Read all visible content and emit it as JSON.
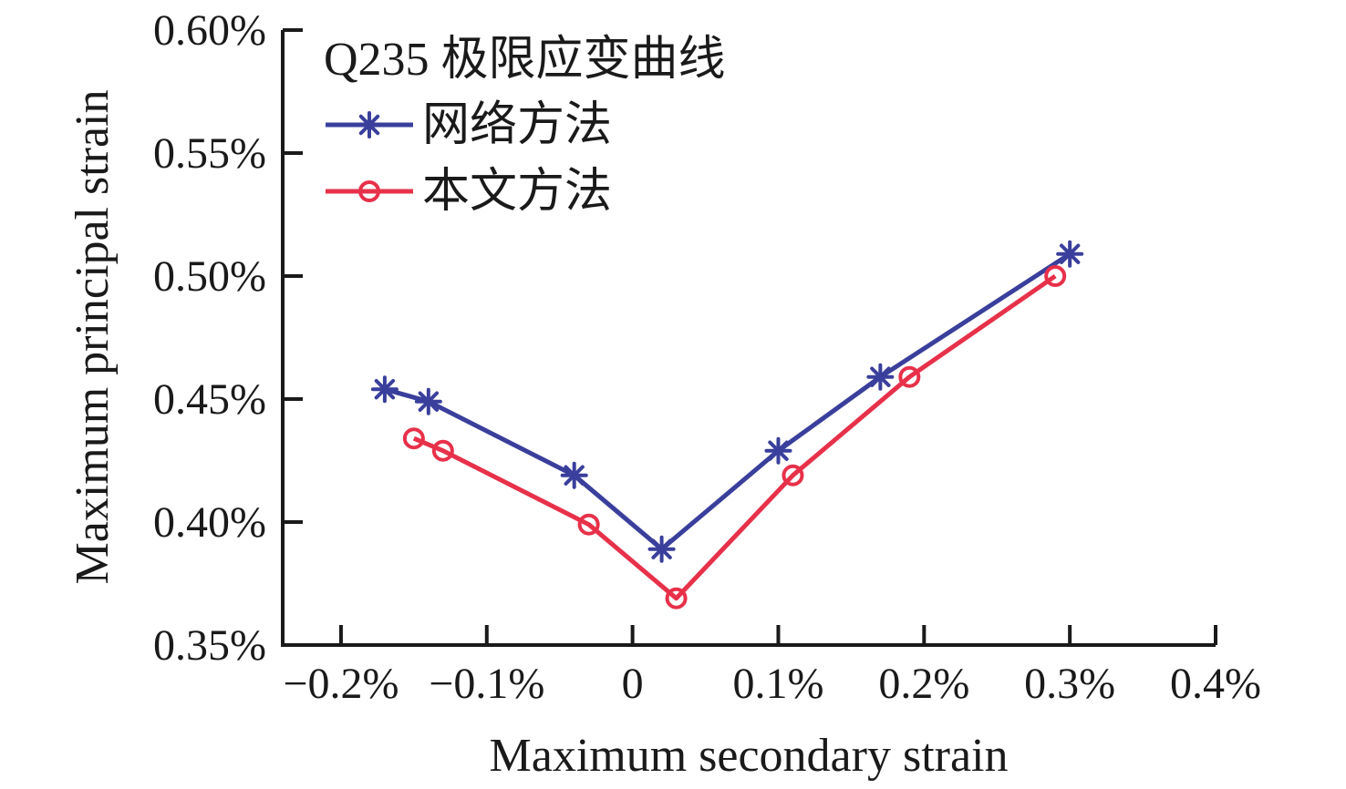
{
  "page": {
    "background": "#ffffff",
    "text_color": "#1a1a1a",
    "axis_color": "#1a1a1a"
  },
  "chart_data": {
    "type": "line",
    "title": "Q235 极限应变曲线",
    "xlabel": "Maximum secondary strain",
    "ylabel": "Maximum principal strain",
    "value_unit": "%",
    "xlim": [
      -0.24,
      0.4
    ],
    "ylim": [
      0.35,
      0.6
    ],
    "grid": false,
    "legend_position": "top-left-inside",
    "x_ticks": [
      {
        "value": -0.2,
        "label": "−0.2%"
      },
      {
        "value": -0.1,
        "label": "−0.1%"
      },
      {
        "value": 0,
        "label": "0"
      },
      {
        "value": 0.1,
        "label": "0.1%"
      },
      {
        "value": 0.2,
        "label": "0.2%"
      },
      {
        "value": 0.3,
        "label": "0.3%"
      },
      {
        "value": 0.4,
        "label": "0.4%"
      }
    ],
    "y_ticks": [
      {
        "value": 0.35,
        "label": "0.35%"
      },
      {
        "value": 0.4,
        "label": "0.40%"
      },
      {
        "value": 0.45,
        "label": "0.45%"
      },
      {
        "value": 0.5,
        "label": "0.50%"
      },
      {
        "value": 0.55,
        "label": "0.55%"
      },
      {
        "value": 0.6,
        "label": "0.60%"
      }
    ],
    "series": [
      {
        "name": "网络方法",
        "color": "#3a3f9c",
        "marker": "asterisk",
        "points": [
          [
            -0.17,
            0.454
          ],
          [
            -0.14,
            0.449
          ],
          [
            -0.04,
            0.419
          ],
          [
            0.02,
            0.389
          ],
          [
            0.1,
            0.429
          ],
          [
            0.17,
            0.459
          ],
          [
            0.3,
            0.509
          ]
        ]
      },
      {
        "name": "本文方法",
        "color": "#e7314a",
        "marker": "open-circle",
        "points": [
          [
            -0.15,
            0.434
          ],
          [
            -0.13,
            0.429
          ],
          [
            -0.03,
            0.399
          ],
          [
            0.03,
            0.369
          ],
          [
            0.11,
            0.419
          ],
          [
            0.19,
            0.459
          ],
          [
            0.29,
            0.5
          ]
        ]
      }
    ]
  }
}
